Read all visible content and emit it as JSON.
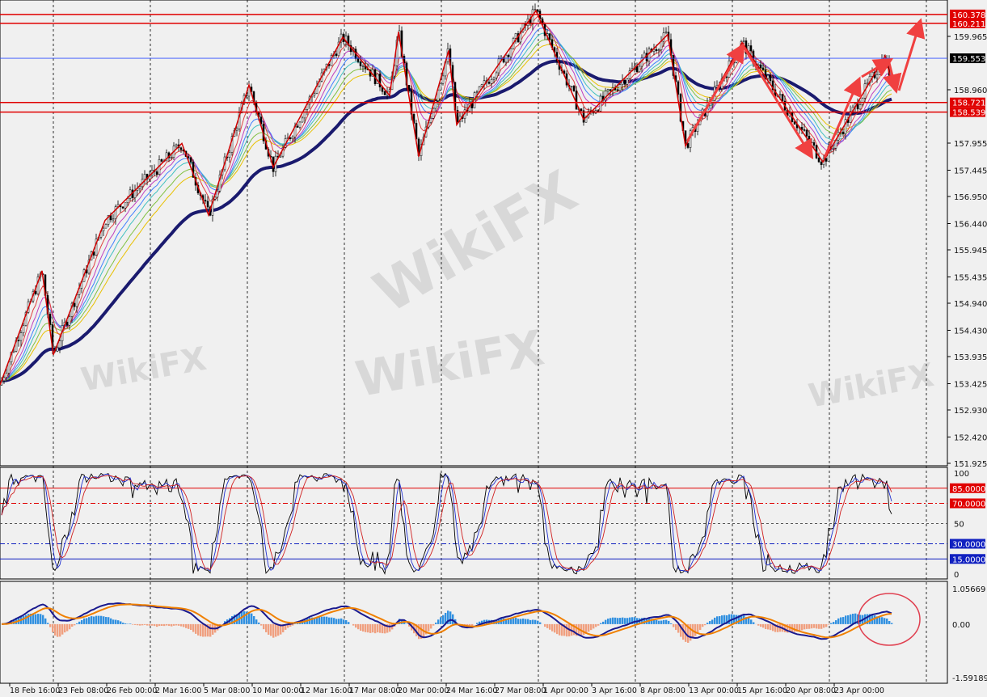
{
  "watermark": "WikiFX",
  "chart_data": [
    {
      "type": "candlestick",
      "title": "",
      "price_axis": {
        "ticks": [
          "159.965",
          "158.960",
          "157.955",
          "157.445",
          "156.950",
          "156.440",
          "155.945",
          "155.435",
          "154.940",
          "154.430",
          "153.935",
          "153.425",
          "152.930",
          "152.420",
          "151.925"
        ],
        "range": [
          151.925,
          160.458
        ]
      },
      "time_axis": {
        "ticks": [
          "18 Feb 16:00",
          "23 Feb 08:00",
          "26 Feb 00:00",
          "2 Mar 16:00",
          "5 Mar 08:00",
          "10 Mar 00:00",
          "12 Mar 16:00",
          "17 Mar 08:00",
          "20 Mar 00:00",
          "24 Mar 16:00",
          "27 Mar 08:00",
          "1 Apr 00:00",
          "3 Apr 16:00",
          "8 Apr 08:00",
          "13 Apr 00:00",
          "15 Apr 16:00",
          "20 Apr 08:00",
          "23 Apr 00:00"
        ]
      },
      "zigzag_prices": [
        153.4,
        155.55,
        153.97,
        156.5,
        157.95,
        156.6,
        159.05,
        157.5,
        159.95,
        158.85,
        160.05,
        157.7,
        159.7,
        158.3,
        160.45,
        158.4,
        160.0,
        157.9,
        159.85,
        157.6,
        159.6,
        159.1
      ],
      "horizontal_levels": [
        {
          "value": "160.378",
          "color": "#e00000"
        },
        {
          "value": "160.211",
          "color": "#e00000"
        },
        {
          "value": "158.721",
          "color": "#e00000"
        },
        {
          "value": "158.539",
          "color": "#e00000"
        }
      ],
      "current_price": {
        "value": "159.553",
        "color": "#000000",
        "line_color": "#3050ff"
      },
      "moving_average_colors": [
        "#1a1a6e",
        "#e8c000",
        "#80c040",
        "#40c0c0",
        "#4080ff",
        "#c040c0",
        "#e04040"
      ]
    },
    {
      "type": "line",
      "indicator": "stochastic",
      "range": [
        0,
        100
      ],
      "ticks": [
        "100",
        "50",
        "0"
      ],
      "levels": [
        {
          "value": "85.0000",
          "color": "#e00000"
        },
        {
          "value": "70.0000",
          "color": "#e00000"
        },
        {
          "value": "30.0000",
          "color": "#1020c0"
        },
        {
          "value": "15.0000",
          "color": "#1020c0"
        }
      ]
    },
    {
      "type": "bar",
      "indicator": "macd",
      "range": [
        -1.59189,
        1.05669
      ],
      "ticks": [
        "1.05669",
        "0.00",
        "-1.59189"
      ],
      "colors": {
        "positive": "#3090e0",
        "negative": "#f0a080",
        "signal": "#f08000",
        "main": "#1a1a8e"
      }
    }
  ]
}
